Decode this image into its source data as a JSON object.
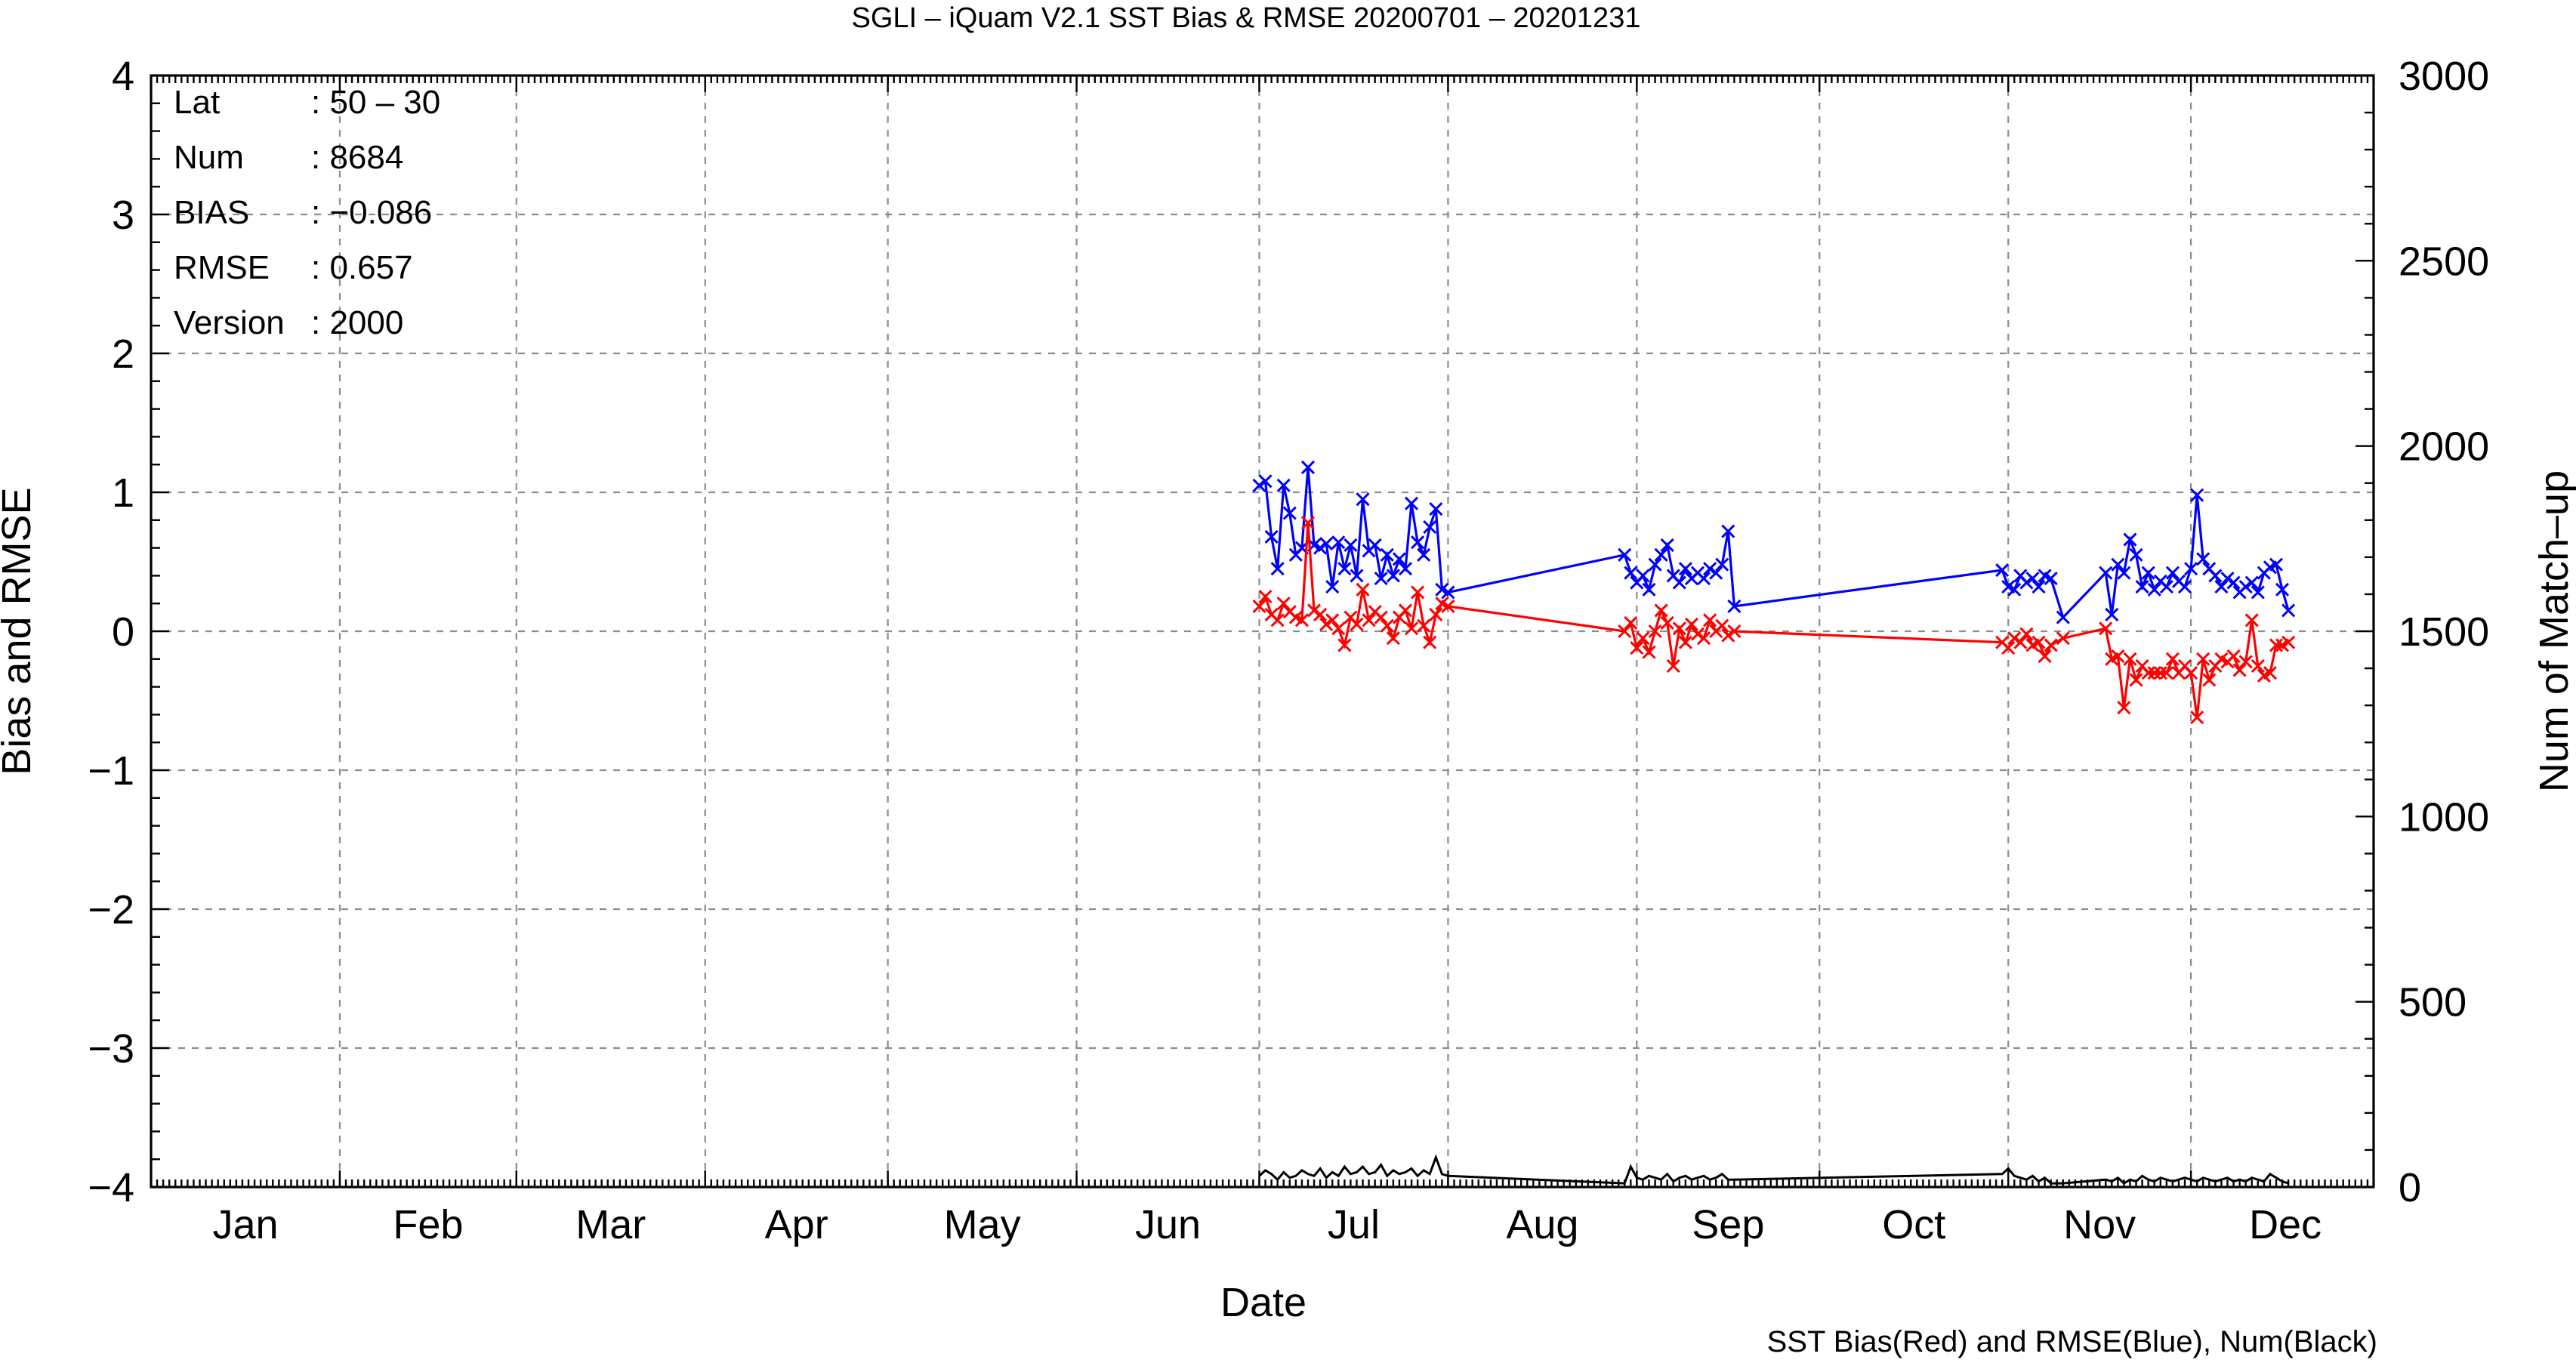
{
  "chart_data": {
    "type": "line",
    "title": "SGLI – iQuam V2.1 SST Bias & RMSE 20200701 – 20201231",
    "xlabel": "Date",
    "ylabel": "Bias and RMSE",
    "ylabel_right": "Num of Match–up",
    "note": "SST Bias(Red) and RMSE(Blue), Num(Black)",
    "ylim": [
      -4,
      4
    ],
    "ylim_right": [
      0,
      3000
    ],
    "x_unit": "day of year 2020",
    "xlim": [
      1,
      366
    ],
    "grid": true,
    "month_labels": [
      "Jan",
      "Feb",
      "Mar",
      "Apr",
      "May",
      "Jun",
      "Jul",
      "Aug",
      "Sep",
      "Oct",
      "Nov",
      "Dec"
    ],
    "y_ticks": [
      "4",
      "3",
      "2",
      "1",
      "0",
      "−1",
      "−2",
      "−3",
      "−4"
    ],
    "y_right_ticks": [
      "3000",
      "2500",
      "2000",
      "1500",
      "1000",
      "500",
      "0"
    ],
    "info_box": [
      {
        "label": "Lat",
        "value": ": 50 – 30"
      },
      {
        "label": "Num",
        "value": ": 8684"
      },
      {
        "label": "BIAS",
        "value": ": −0.086"
      },
      {
        "label": "RMSE",
        "value": ": 0.657"
      },
      {
        "label": "Version",
        "value": ": 2000"
      }
    ],
    "series": [
      {
        "color": "#0000ff",
        "marker": "x",
        "axis": "left",
        "x": [
          183,
          184,
          185,
          186,
          187,
          188,
          189,
          190,
          191,
          192,
          193,
          194,
          195,
          196,
          197,
          198,
          199,
          200,
          201,
          202,
          203,
          204,
          205,
          206,
          207,
          208,
          209,
          210,
          211,
          212,
          213,
          214,
          243,
          244,
          245,
          246,
          247,
          248,
          249,
          250,
          251,
          252,
          253,
          254,
          255,
          256,
          257,
          258,
          259,
          260,
          261,
          305,
          306,
          307,
          308,
          309,
          310,
          311,
          312,
          313,
          315,
          322,
          323,
          324,
          325,
          326,
          327,
          328,
          329,
          330,
          331,
          332,
          333,
          334,
          335,
          336,
          337,
          338,
          339,
          340,
          341,
          342,
          343,
          344,
          345,
          346,
          347,
          348,
          349,
          350,
          351,
          352
        ],
        "y": [
          1.05,
          1.08,
          0.68,
          0.45,
          1.05,
          0.85,
          0.55,
          0.6,
          1.18,
          0.62,
          0.6,
          0.63,
          0.32,
          0.64,
          0.45,
          0.62,
          0.4,
          0.95,
          0.58,
          0.62,
          0.38,
          0.55,
          0.4,
          0.52,
          0.45,
          0.92,
          0.64,
          0.55,
          0.75,
          0.88,
          0.3,
          0.28,
          0.55,
          0.42,
          0.35,
          0.4,
          0.3,
          0.48,
          0.55,
          0.62,
          0.4,
          0.35,
          0.45,
          0.38,
          0.42,
          0.38,
          0.45,
          0.42,
          0.48,
          0.72,
          0.18,
          0.44,
          0.32,
          0.3,
          0.4,
          0.35,
          0.38,
          0.32,
          0.4,
          0.38,
          0.1,
          0.42,
          0.12,
          0.48,
          0.42,
          0.66,
          0.55,
          0.32,
          0.42,
          0.3,
          0.36,
          0.32,
          0.42,
          0.36,
          0.32,
          0.45,
          0.98,
          0.52,
          0.45,
          0.4,
          0.32,
          0.38,
          0.35,
          0.28,
          0.32,
          0.35,
          0.28,
          0.42,
          0.46,
          0.48,
          0.3,
          0.15
        ]
      },
      {
        "color": "#ff0000",
        "marker": "x",
        "axis": "left",
        "x": [
          183,
          184,
          185,
          186,
          187,
          188,
          189,
          190,
          191,
          192,
          193,
          194,
          195,
          196,
          197,
          198,
          199,
          200,
          201,
          202,
          203,
          204,
          205,
          206,
          207,
          208,
          209,
          210,
          211,
          212,
          213,
          214,
          243,
          244,
          245,
          246,
          247,
          248,
          249,
          250,
          251,
          252,
          253,
          254,
          255,
          256,
          257,
          258,
          259,
          260,
          261,
          305,
          306,
          307,
          308,
          309,
          310,
          311,
          312,
          313,
          315,
          322,
          323,
          324,
          325,
          326,
          327,
          328,
          329,
          330,
          331,
          332,
          333,
          334,
          335,
          336,
          337,
          338,
          339,
          340,
          341,
          342,
          343,
          344,
          345,
          346,
          347,
          348,
          349,
          350,
          351,
          352
        ],
        "y": [
          0.18,
          0.25,
          0.12,
          0.08,
          0.2,
          0.14,
          0.1,
          0.08,
          0.78,
          0.15,
          0.12,
          0.05,
          0.08,
          0.02,
          -0.1,
          0.1,
          0.05,
          0.3,
          0.08,
          0.14,
          0.1,
          0.04,
          -0.05,
          0.1,
          0.15,
          0.02,
          0.28,
          0.04,
          -0.08,
          0.12,
          0.2,
          0.18,
          0.0,
          0.06,
          -0.12,
          -0.05,
          -0.15,
          0.0,
          0.15,
          0.06,
          -0.25,
          0.02,
          -0.08,
          0.05,
          -0.02,
          -0.05,
          0.08,
          0.0,
          0.04,
          -0.03,
          0.0,
          -0.08,
          -0.12,
          -0.05,
          -0.08,
          -0.02,
          -0.1,
          -0.08,
          -0.18,
          -0.1,
          -0.05,
          0.02,
          -0.2,
          -0.18,
          -0.55,
          -0.2,
          -0.35,
          -0.25,
          -0.3,
          -0.3,
          -0.3,
          -0.3,
          -0.2,
          -0.3,
          -0.25,
          -0.3,
          -0.62,
          -0.2,
          -0.35,
          -0.25,
          -0.2,
          -0.22,
          -0.18,
          -0.28,
          -0.22,
          0.08,
          -0.25,
          -0.32,
          -0.3,
          -0.1,
          -0.1,
          -0.08
        ]
      },
      {
        "color": "#000000",
        "marker": "none",
        "axis": "right",
        "x": [
          183,
          184,
          185,
          186,
          187,
          188,
          189,
          190,
          191,
          192,
          193,
          194,
          195,
          196,
          197,
          198,
          199,
          200,
          201,
          202,
          203,
          204,
          205,
          206,
          207,
          208,
          209,
          210,
          211,
          212,
          213,
          214,
          243,
          244,
          245,
          246,
          247,
          248,
          249,
          250,
          251,
          252,
          253,
          254,
          255,
          256,
          257,
          258,
          259,
          260,
          261,
          305,
          306,
          307,
          308,
          309,
          310,
          311,
          312,
          313,
          315,
          322,
          323,
          324,
          325,
          326,
          327,
          328,
          329,
          330,
          331,
          332,
          333,
          334,
          335,
          336,
          337,
          338,
          339,
          340,
          341,
          342,
          343,
          344,
          345,
          346,
          347,
          348,
          349,
          350,
          351,
          352
        ],
        "y": [
          30,
          45,
          35,
          20,
          40,
          25,
          30,
          45,
          35,
          30,
          50,
          25,
          40,
          30,
          55,
          35,
          40,
          55,
          35,
          40,
          60,
          30,
          45,
          35,
          40,
          50,
          30,
          45,
          35,
          80,
          35,
          30,
          10,
          55,
          25,
          20,
          30,
          25,
          20,
          35,
          15,
          25,
          30,
          20,
          25,
          30,
          20,
          25,
          35,
          20,
          20,
          35,
          50,
          30,
          25,
          20,
          30,
          15,
          25,
          10,
          10,
          20,
          15,
          25,
          10,
          20,
          15,
          30,
          20,
          15,
          25,
          20,
          15,
          20,
          25,
          20,
          15,
          25,
          20,
          15,
          20,
          25,
          15,
          20,
          15,
          25,
          20,
          15,
          35,
          25,
          15,
          10
        ]
      }
    ]
  }
}
